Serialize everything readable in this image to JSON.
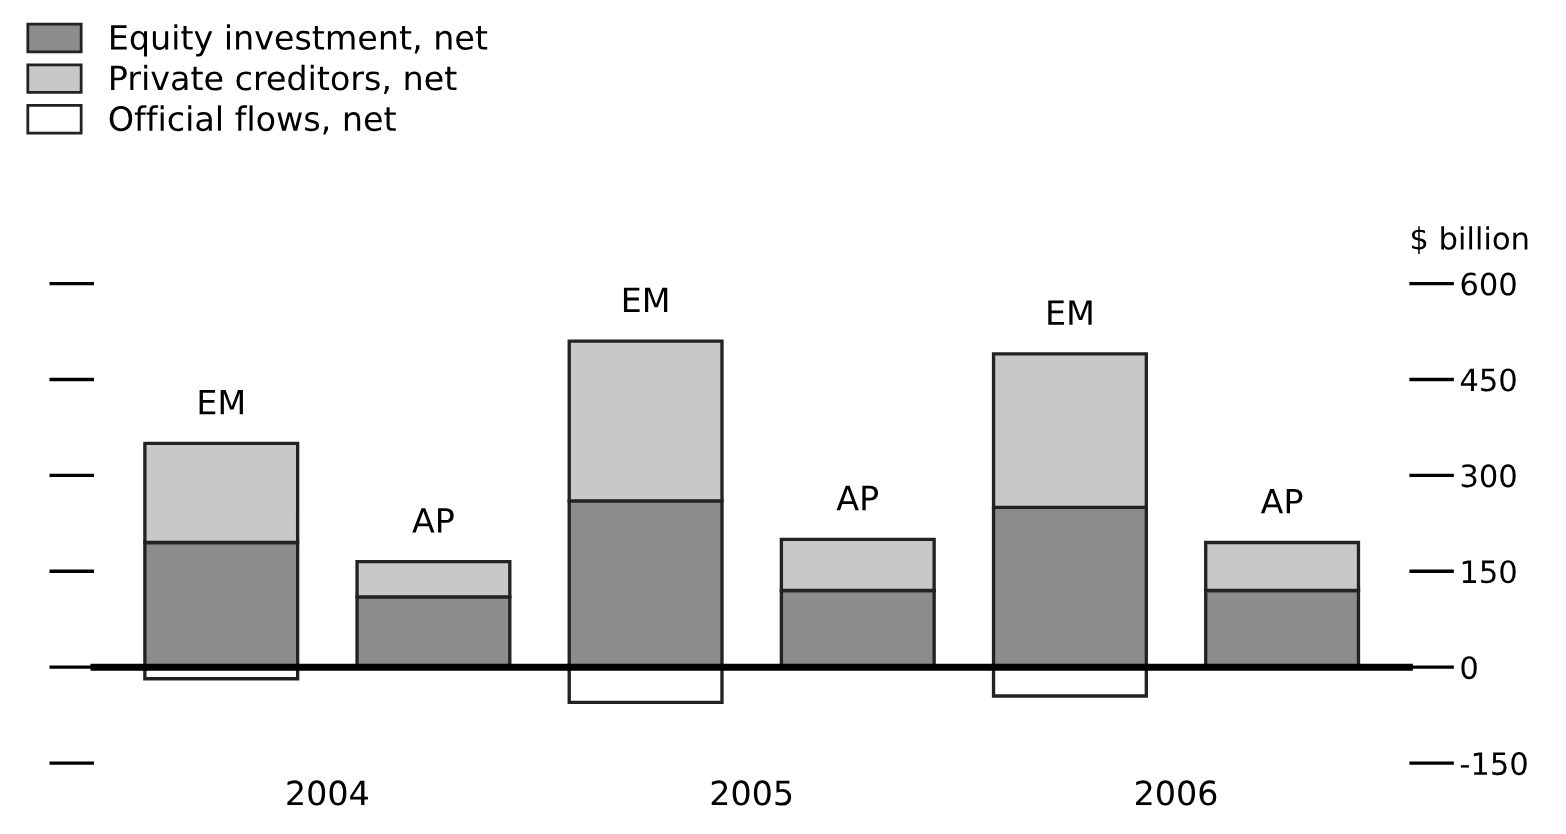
{
  "chart_data": {
    "type": "bar",
    "stacked": true,
    "categories": [
      null,
      null,
      null,
      null,
      null,
      null
    ],
    "series": [
      {
        "name": "Equity investment, net",
        "color": "#8c8c8c",
        "values": [
          195,
          110,
          260,
          120,
          250,
          120
        ]
      },
      {
        "name": "Private creditors, net",
        "color": "#c8c8c8",
        "values": [
          155,
          55,
          250,
          80,
          240,
          75
        ],
        "value_labels": [
          "EM",
          "AP",
          "EM",
          "AP",
          "EM",
          "AP"
        ]
      },
      {
        "name": "Official flows, net",
        "color": "#ffffff",
        "values": [
          -18,
          null,
          -55,
          null,
          -45,
          null
        ]
      }
    ],
    "ylabel": "$ billion",
    "ylim": [
      -150,
      600
    ],
    "yticks": [
      -150,
      0,
      150,
      300,
      450,
      600
    ],
    "annotations": [
      "2004",
      "2005",
      "2006"
    ],
    "tick_labels": "y",
    "legend": "top left"
  }
}
